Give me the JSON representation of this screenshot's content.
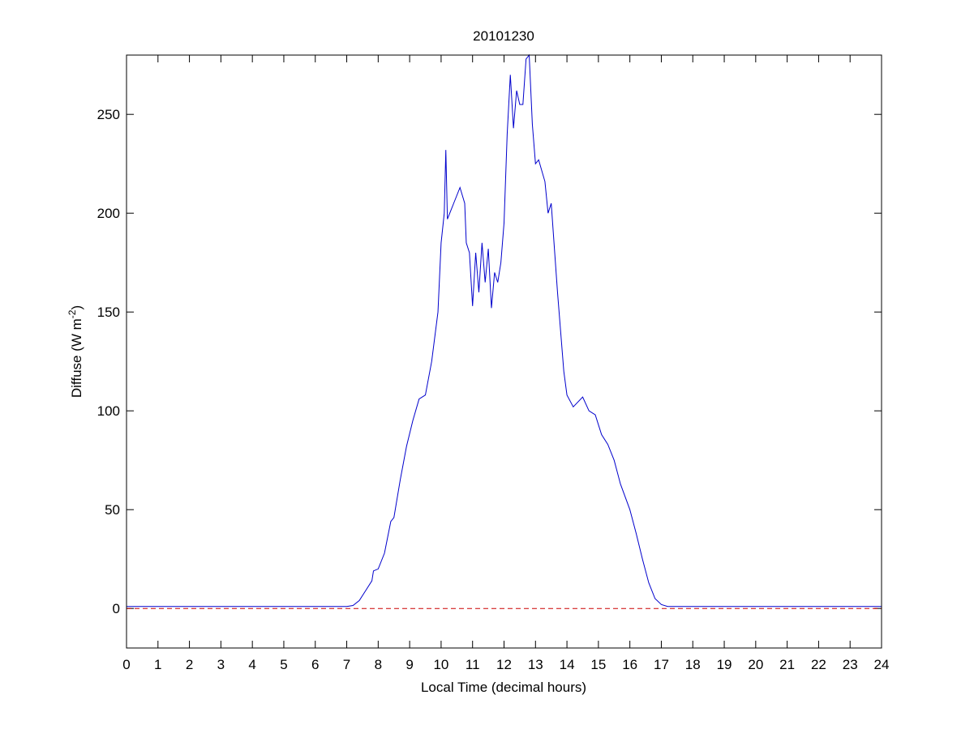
{
  "chart_data": {
    "type": "line",
    "title": "20101230",
    "xlabel": "Local Time (decimal hours)",
    "ylabel": [
      "Diffuse (W m",
      "-2",
      ")"
    ],
    "x": [
      0,
      7.0,
      7.2,
      7.4,
      7.6,
      7.8,
      7.85,
      8.0,
      8.2,
      8.4,
      8.5,
      8.7,
      8.9,
      9.1,
      9.3,
      9.5,
      9.7,
      9.9,
      10.0,
      10.1,
      10.15,
      10.2,
      10.4,
      10.6,
      10.75,
      10.8,
      10.9,
      11.0,
      11.1,
      11.2,
      11.3,
      11.4,
      11.5,
      11.6,
      11.7,
      11.8,
      11.9,
      12.0,
      12.1,
      12.2,
      12.3,
      12.4,
      12.5,
      12.6,
      12.7,
      12.8,
      12.9,
      13.0,
      13.1,
      13.3,
      13.4,
      13.5,
      13.7,
      13.9,
      14.0,
      14.2,
      14.5,
      14.7,
      14.9,
      15.1,
      15.3,
      15.5,
      15.7,
      16.0,
      16.2,
      16.4,
      16.6,
      16.8,
      17.0,
      17.2,
      24
    ],
    "series": [
      {
        "color": "#0000cc",
        "values": [
          1,
          1,
          1.5,
          4,
          9,
          14,
          19,
          20,
          28,
          44,
          46,
          65,
          82,
          95,
          106,
          108,
          125,
          150,
          185,
          200,
          232,
          197,
          205,
          213,
          205,
          185,
          180,
          153,
          180,
          160,
          185,
          165,
          182,
          152,
          170,
          165,
          175,
          195,
          240,
          270,
          243,
          262,
          255,
          255,
          278,
          280,
          245,
          225,
          227,
          216,
          200,
          205,
          160,
          120,
          108,
          102,
          107,
          100,
          98,
          88,
          83,
          75,
          63,
          50,
          38,
          25,
          13,
          5,
          2,
          1,
          1
        ]
      }
    ],
    "hline": {
      "value": 0,
      "color": "#cc0000"
    },
    "xlim": [
      0,
      24
    ],
    "xticks": [
      0,
      1,
      2,
      3,
      4,
      5,
      6,
      7,
      8,
      9,
      10,
      11,
      12,
      13,
      14,
      15,
      16,
      17,
      18,
      19,
      20,
      21,
      22,
      23,
      24
    ],
    "ylim": [
      -20,
      280
    ],
    "yticks": [
      0,
      50,
      100,
      150,
      200,
      250
    ]
  }
}
